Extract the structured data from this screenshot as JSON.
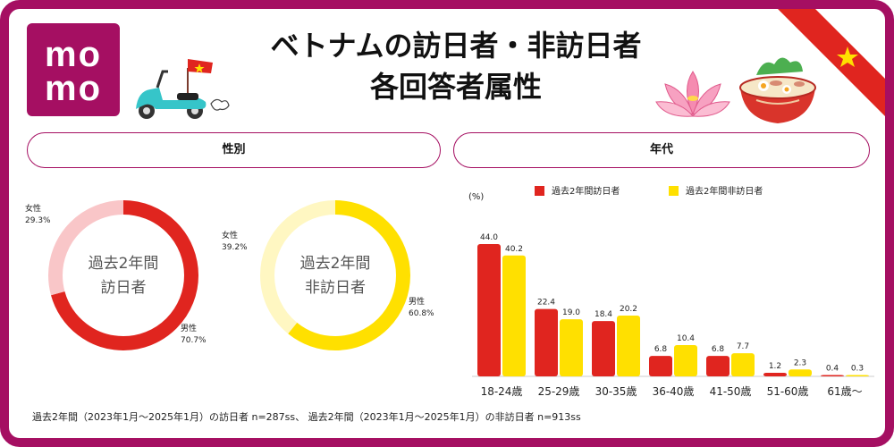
{
  "logo": {
    "line1": "mo",
    "line2": "mo"
  },
  "header": {
    "title_line1": "ベトナムの訪日者・非訪日者",
    "title_line2": "各回答者属性"
  },
  "gender_section": {
    "title": "性別"
  },
  "age_section": {
    "title": "年代"
  },
  "colors": {
    "brand": "#a50f62",
    "visitor": "#e0251f",
    "visitor_light": "#f9c6c8",
    "nonvisitor": "#ffe000",
    "nonvisitor_light": "#fff7c2"
  },
  "chart_data": [
    {
      "type": "pie",
      "center_label_line1": "過去2年間",
      "center_label_line2": "訪日者",
      "slices": [
        {
          "name": "男性",
          "value": 70.7,
          "value_label": "70.7%"
        },
        {
          "name": "女性",
          "value": 29.3,
          "value_label": "29.3%"
        }
      ]
    },
    {
      "type": "pie",
      "center_label_line1": "過去2年間",
      "center_label_line2": "非訪日者",
      "slices": [
        {
          "name": "男性",
          "value": 60.8,
          "value_label": "60.8%"
        },
        {
          "name": "女性",
          "value": 39.2,
          "value_label": "39.2%"
        }
      ]
    },
    {
      "type": "bar",
      "ylabel": "(%)",
      "categories": [
        "18-24歳",
        "25-29歳",
        "30-35歳",
        "36-40歳",
        "41-50歳",
        "51-60歳",
        "61歳〜"
      ],
      "series": [
        {
          "name": "過去2年間訪日者",
          "values": [
            44.0,
            22.4,
            18.4,
            6.8,
            6.8,
            1.2,
            0.4
          ]
        },
        {
          "name": "過去2年間非訪日者",
          "values": [
            40.2,
            19.0,
            20.2,
            10.4,
            7.7,
            2.3,
            0.3
          ]
        }
      ],
      "ylim": [
        0,
        44
      ],
      "grid": false,
      "legend": "top"
    }
  ],
  "footnote": "過去2年間（2023年1月〜2025年1月）の訪日者 n=287ss、 過去2年間（2023年1月〜2025年1月）の非訪日者 n=913ss"
}
